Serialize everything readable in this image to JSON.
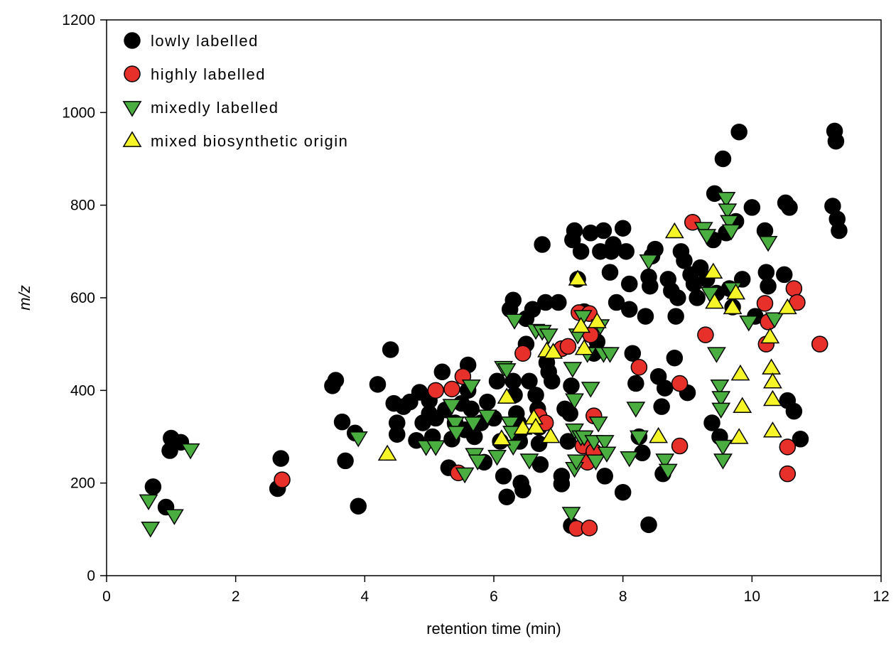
{
  "chart_data": {
    "type": "scatter",
    "xlabel": "retention time (min)",
    "ylabel": "m/z",
    "xlim": [
      0,
      12
    ],
    "ylim": [
      0,
      1200
    ],
    "xticks": [
      "0",
      "2",
      "4",
      "6",
      "8",
      "10",
      "12"
    ],
    "yticks": [
      "0",
      "200",
      "400",
      "600",
      "800",
      "1000",
      "1200"
    ],
    "grid": false,
    "legend_position": "top-left",
    "series": [
      {
        "name": "lowly labelled",
        "marker": "circle",
        "color": "#000000",
        "points": [
          [
            0.72,
            192
          ],
          [
            0.92,
            148
          ],
          [
            0.98,
            270
          ],
          [
            1.0,
            297
          ],
          [
            1.15,
            288
          ],
          [
            2.65,
            188
          ],
          [
            2.7,
            253
          ],
          [
            3.5,
            410
          ],
          [
            3.55,
            422
          ],
          [
            3.65,
            332
          ],
          [
            3.7,
            248
          ],
          [
            3.85,
            308
          ],
          [
            3.9,
            150
          ],
          [
            4.2,
            413
          ],
          [
            4.4,
            488
          ],
          [
            4.45,
            372
          ],
          [
            4.5,
            330
          ],
          [
            4.5,
            305
          ],
          [
            4.6,
            365
          ],
          [
            4.7,
            375
          ],
          [
            4.8,
            292
          ],
          [
            4.85,
            396
          ],
          [
            4.9,
            330
          ],
          [
            5.0,
            378
          ],
          [
            5.0,
            350
          ],
          [
            5.05,
            300
          ],
          [
            5.1,
            340
          ],
          [
            5.2,
            440
          ],
          [
            5.25,
            358
          ],
          [
            5.3,
            233
          ],
          [
            5.35,
            295
          ],
          [
            5.4,
            330
          ],
          [
            5.5,
            372
          ],
          [
            5.55,
            315
          ],
          [
            5.6,
            455
          ],
          [
            5.6,
            400
          ],
          [
            5.65,
            360
          ],
          [
            5.7,
            300
          ],
          [
            5.8,
            330
          ],
          [
            5.85,
            245
          ],
          [
            5.9,
            375
          ],
          [
            6.0,
            340
          ],
          [
            6.05,
            420
          ],
          [
            6.1,
            290
          ],
          [
            6.15,
            215
          ],
          [
            6.2,
            170
          ],
          [
            6.25,
            575
          ],
          [
            6.3,
            595
          ],
          [
            6.3,
            420
          ],
          [
            6.32,
            390
          ],
          [
            6.35,
            350
          ],
          [
            6.38,
            330
          ],
          [
            6.4,
            310
          ],
          [
            6.4,
            290
          ],
          [
            6.42,
            200
          ],
          [
            6.45,
            185
          ],
          [
            6.5,
            500
          ],
          [
            6.5,
            555
          ],
          [
            6.55,
            420
          ],
          [
            6.6,
            575
          ],
          [
            6.65,
            390
          ],
          [
            6.68,
            360
          ],
          [
            6.7,
            320
          ],
          [
            6.7,
            285
          ],
          [
            6.72,
            240
          ],
          [
            6.75,
            715
          ],
          [
            6.8,
            590
          ],
          [
            6.82,
            460
          ],
          [
            6.85,
            440
          ],
          [
            6.9,
            420
          ],
          [
            7.0,
            590
          ],
          [
            7.05,
            215
          ],
          [
            7.05,
            198
          ],
          [
            7.1,
            360
          ],
          [
            7.15,
            290
          ],
          [
            7.18,
            350
          ],
          [
            7.2,
            108
          ],
          [
            7.2,
            410
          ],
          [
            7.22,
            725
          ],
          [
            7.25,
            745
          ],
          [
            7.3,
            640
          ],
          [
            7.35,
            700
          ],
          [
            7.4,
            570
          ],
          [
            7.5,
            740
          ],
          [
            7.55,
            480
          ],
          [
            7.6,
            505
          ],
          [
            7.65,
            700
          ],
          [
            7.7,
            745
          ],
          [
            7.72,
            215
          ],
          [
            7.8,
            655
          ],
          [
            7.82,
            700
          ],
          [
            7.85,
            715
          ],
          [
            7.9,
            590
          ],
          [
            8.0,
            180
          ],
          [
            8.0,
            750
          ],
          [
            8.05,
            700
          ],
          [
            8.1,
            630
          ],
          [
            8.1,
            575
          ],
          [
            8.15,
            480
          ],
          [
            8.2,
            415
          ],
          [
            8.25,
            300
          ],
          [
            8.3,
            265
          ],
          [
            8.35,
            560
          ],
          [
            8.4,
            110
          ],
          [
            8.4,
            645
          ],
          [
            8.42,
            625
          ],
          [
            8.45,
            690
          ],
          [
            8.5,
            705
          ],
          [
            8.55,
            430
          ],
          [
            8.6,
            365
          ],
          [
            8.62,
            220
          ],
          [
            8.65,
            405
          ],
          [
            8.7,
            640
          ],
          [
            8.75,
            615
          ],
          [
            8.8,
            470
          ],
          [
            8.82,
            560
          ],
          [
            8.85,
            600
          ],
          [
            8.9,
            700
          ],
          [
            8.95,
            680
          ],
          [
            9.0,
            395
          ],
          [
            9.05,
            650
          ],
          [
            9.1,
            630
          ],
          [
            9.15,
            600
          ],
          [
            9.2,
            665
          ],
          [
            9.3,
            640
          ],
          [
            9.38,
            330
          ],
          [
            9.4,
            725
          ],
          [
            9.42,
            825
          ],
          [
            9.45,
            610
          ],
          [
            9.5,
            300
          ],
          [
            9.55,
            900
          ],
          [
            9.6,
            740
          ],
          [
            9.65,
            620
          ],
          [
            9.7,
            580
          ],
          [
            9.75,
            765
          ],
          [
            9.8,
            958
          ],
          [
            9.85,
            640
          ],
          [
            10.0,
            795
          ],
          [
            10.05,
            560
          ],
          [
            10.2,
            745
          ],
          [
            10.22,
            655
          ],
          [
            10.25,
            625
          ],
          [
            10.5,
            650
          ],
          [
            10.52,
            805
          ],
          [
            10.55,
            378
          ],
          [
            10.58,
            795
          ],
          [
            10.65,
            355
          ],
          [
            10.75,
            295
          ],
          [
            11.25,
            798
          ],
          [
            11.28,
            960
          ],
          [
            11.3,
            938
          ],
          [
            11.32,
            770
          ],
          [
            11.35,
            745
          ]
        ]
      },
      {
        "name": "highly labelled",
        "marker": "circle",
        "color": "#e8302a",
        "points": [
          [
            2.72,
            207
          ],
          [
            5.1,
            400
          ],
          [
            5.35,
            403
          ],
          [
            5.45,
            222
          ],
          [
            5.52,
            430
          ],
          [
            6.45,
            480
          ],
          [
            6.7,
            345
          ],
          [
            6.8,
            330
          ],
          [
            7.05,
            490
          ],
          [
            7.15,
            495
          ],
          [
            7.28,
            102
          ],
          [
            7.32,
            568
          ],
          [
            7.38,
            280
          ],
          [
            7.45,
            245
          ],
          [
            7.48,
            103
          ],
          [
            7.48,
            566
          ],
          [
            7.5,
            520
          ],
          [
            7.55,
            345
          ],
          [
            7.55,
            268
          ],
          [
            8.25,
            450
          ],
          [
            8.88,
            280
          ],
          [
            8.88,
            415
          ],
          [
            9.08,
            763
          ],
          [
            9.28,
            520
          ],
          [
            10.2,
            588
          ],
          [
            10.22,
            500
          ],
          [
            10.25,
            548
          ],
          [
            10.55,
            278
          ],
          [
            10.55,
            220
          ],
          [
            10.65,
            620
          ],
          [
            10.7,
            590
          ],
          [
            11.05,
            500
          ]
        ]
      },
      {
        "name": "mixedly labelled",
        "marker": "triangle-down",
        "color": "#4aad3f",
        "points": [
          [
            0.65,
            162
          ],
          [
            0.68,
            103
          ],
          [
            1.05,
            130
          ],
          [
            1.3,
            272
          ],
          [
            3.9,
            298
          ],
          [
            4.95,
            279
          ],
          [
            5.1,
            279
          ],
          [
            5.35,
            368
          ],
          [
            5.4,
            330
          ],
          [
            5.42,
            310
          ],
          [
            5.55,
            220
          ],
          [
            5.65,
            410
          ],
          [
            5.68,
            330
          ],
          [
            5.7,
            262
          ],
          [
            5.75,
            248
          ],
          [
            5.9,
            345
          ],
          [
            6.05,
            258
          ],
          [
            6.15,
            450
          ],
          [
            6.2,
            445
          ],
          [
            6.25,
            330
          ],
          [
            6.28,
            310
          ],
          [
            6.3,
            280
          ],
          [
            6.32,
            552
          ],
          [
            6.55,
            250
          ],
          [
            6.65,
            530
          ],
          [
            6.75,
            528
          ],
          [
            6.85,
            520
          ],
          [
            7.2,
            135
          ],
          [
            7.22,
            448
          ],
          [
            7.25,
            380
          ],
          [
            7.25,
            315
          ],
          [
            7.25,
            232
          ],
          [
            7.28,
            248
          ],
          [
            7.3,
            520
          ],
          [
            7.35,
            300
          ],
          [
            7.38,
            560
          ],
          [
            7.4,
            300
          ],
          [
            7.45,
            480
          ],
          [
            7.5,
            405
          ],
          [
            7.55,
            290
          ],
          [
            7.58,
            248
          ],
          [
            7.62,
            330
          ],
          [
            7.65,
            540
          ],
          [
            7.7,
            480
          ],
          [
            7.72,
            290
          ],
          [
            7.75,
            265
          ],
          [
            7.8,
            480
          ],
          [
            8.1,
            255
          ],
          [
            8.2,
            362
          ],
          [
            8.25,
            300
          ],
          [
            8.4,
            680
          ],
          [
            8.65,
            250
          ],
          [
            8.7,
            228
          ],
          [
            9.25,
            750
          ],
          [
            9.3,
            735
          ],
          [
            9.35,
            610
          ],
          [
            9.45,
            480
          ],
          [
            9.5,
            410
          ],
          [
            9.52,
            385
          ],
          [
            9.52,
            360
          ],
          [
            9.55,
            280
          ],
          [
            9.55,
            250
          ],
          [
            9.6,
            815
          ],
          [
            9.62,
            790
          ],
          [
            9.65,
            765
          ],
          [
            9.68,
            745
          ],
          [
            9.7,
            620
          ],
          [
            9.95,
            548
          ],
          [
            10.25,
            720
          ],
          [
            10.35,
            555
          ]
        ]
      },
      {
        "name": "mixed biosynthetic origin",
        "marker": "triangle-up",
        "color": "#f5f528",
        "points": [
          [
            4.35,
            262
          ],
          [
            6.12,
            295
          ],
          [
            6.2,
            385
          ],
          [
            6.45,
            318
          ],
          [
            6.62,
            340
          ],
          [
            6.65,
            320
          ],
          [
            6.82,
            485
          ],
          [
            6.88,
            300
          ],
          [
            6.92,
            482
          ],
          [
            7.3,
            640
          ],
          [
            7.35,
            538
          ],
          [
            7.4,
            490
          ],
          [
            7.6,
            548
          ],
          [
            8.55,
            300
          ],
          [
            8.8,
            742
          ],
          [
            9.4,
            655
          ],
          [
            9.42,
            590
          ],
          [
            9.7,
            578
          ],
          [
            9.75,
            610
          ],
          [
            9.8,
            298
          ],
          [
            9.82,
            435
          ],
          [
            9.85,
            365
          ],
          [
            10.28,
            515
          ],
          [
            10.3,
            448
          ],
          [
            10.32,
            418
          ],
          [
            10.32,
            380
          ],
          [
            10.32,
            312
          ],
          [
            10.55,
            578
          ]
        ]
      }
    ]
  }
}
